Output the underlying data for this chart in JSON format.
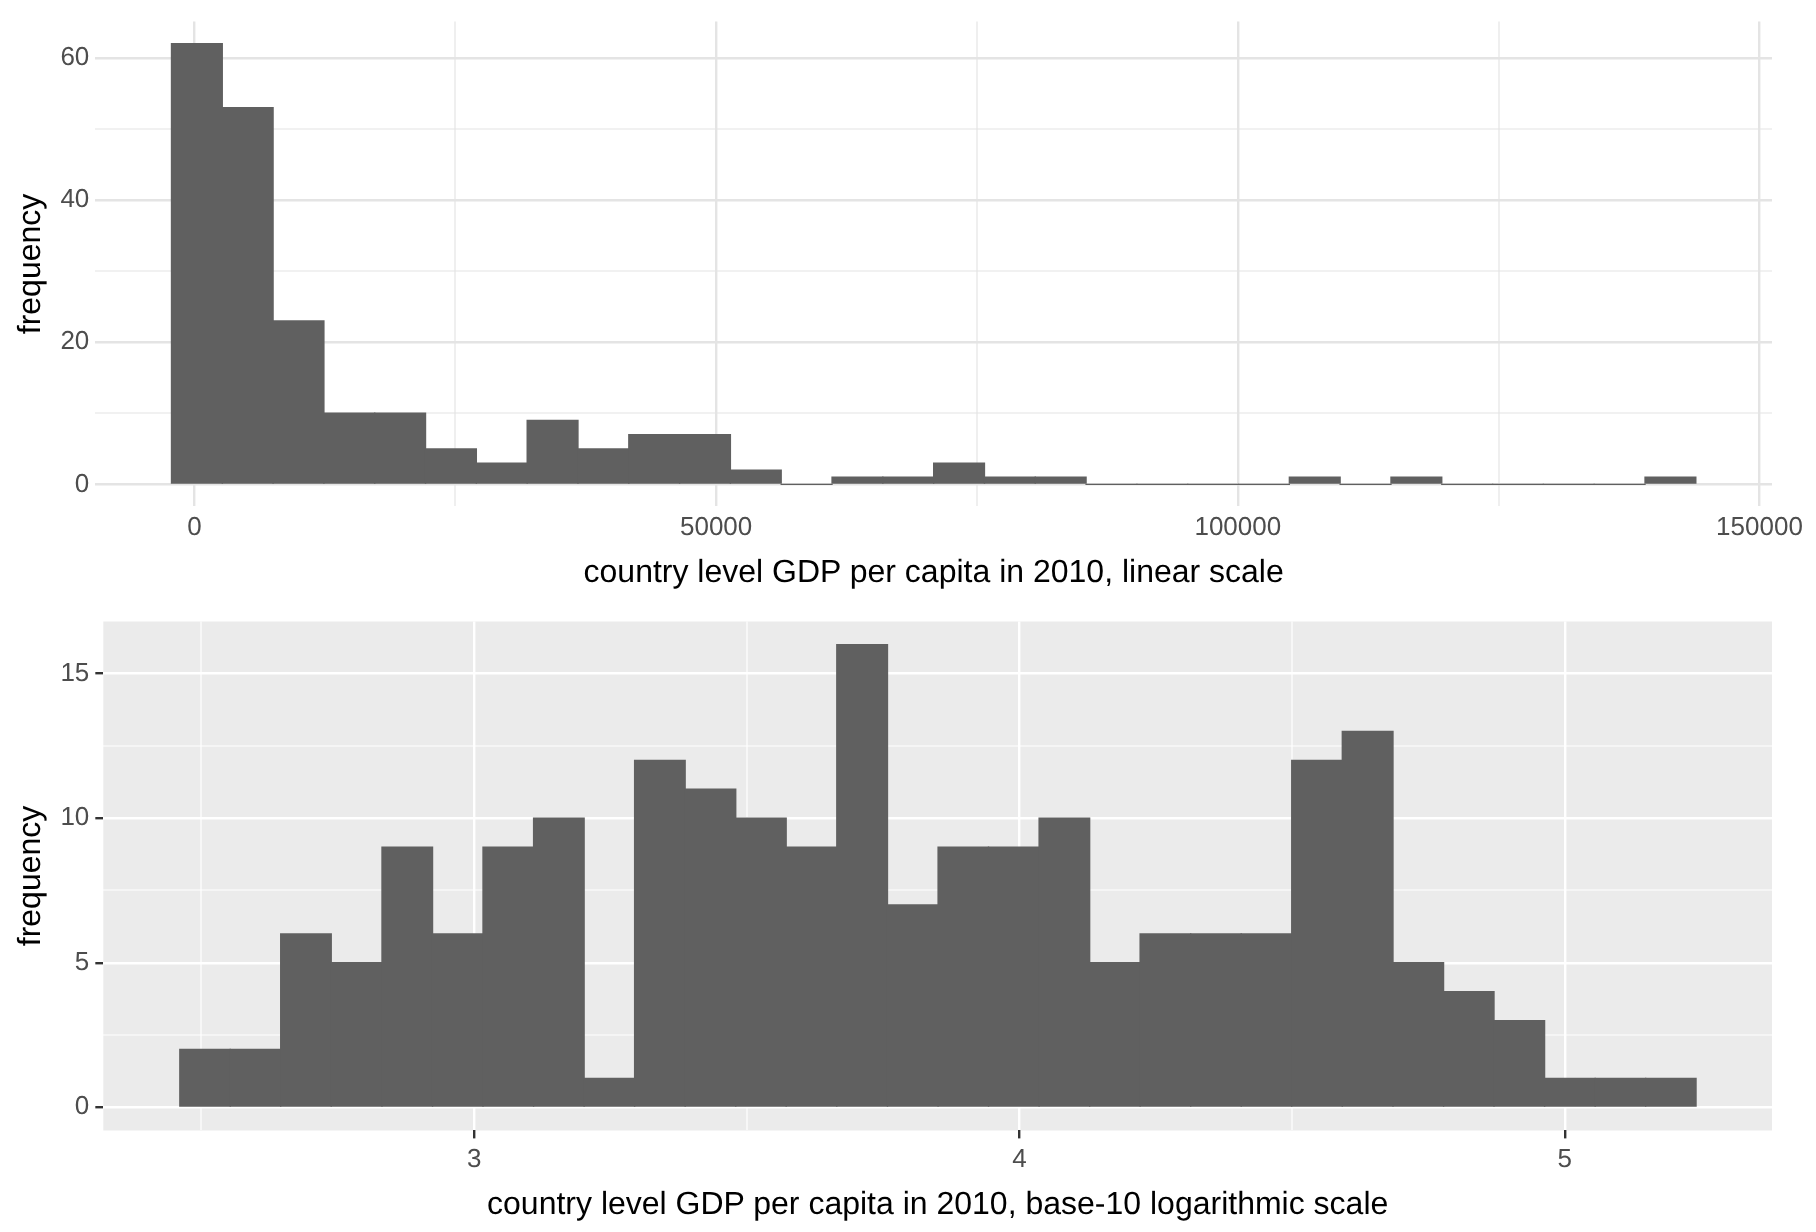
{
  "chart_data": [
    {
      "type": "histogram",
      "xlabel": "country level GDP per capita in 2010, linear scale",
      "ylabel": "frequency",
      "color": "#606060",
      "bins": [
        -2200,
        2670,
        7540,
        12410,
        17280,
        22150,
        27020,
        31890,
        36760,
        41630,
        46500,
        51370,
        56240,
        61110,
        65980,
        70850,
        75720,
        80590,
        85460,
        90330,
        95200,
        100070,
        104940,
        109810,
        114680,
        119550,
        124420,
        129290,
        134160,
        139030,
        143900
      ],
      "values": [
        62,
        53,
        23,
        10,
        10,
        5,
        3,
        9,
        5,
        7,
        7,
        2,
        0,
        1,
        1,
        3,
        1,
        1,
        0,
        0,
        0,
        0,
        1,
        0,
        1,
        0,
        0,
        0,
        0,
        1
      ],
      "xlim": [
        -9500,
        151200
      ],
      "xticks": [
        0,
        {
          "value": 25000,
          "label": null
        },
        50000,
        {
          "value": 75000,
          "label": null
        },
        100000,
        {
          "value": 125000,
          "label": null
        },
        150000
      ],
      "ylim": [
        -3.1,
        65.1
      ],
      "yticks": [
        0,
        {
          "value": 10,
          "label": null
        },
        20,
        {
          "value": 30,
          "label": null
        },
        40,
        {
          "value": 50,
          "label": null
        },
        60
      ],
      "grid": true
    },
    {
      "type": "histogram",
      "xlabel": "country level GDP per capita in 2010, base-10 logarithmic scale",
      "ylabel": "frequency",
      "color": "#606060",
      "bins": [
        2.46,
        2.553,
        2.645,
        2.738,
        2.831,
        2.924,
        3.016,
        3.109,
        3.202,
        3.294,
        3.387,
        3.48,
        3.572,
        3.665,
        3.758,
        3.851,
        3.943,
        4.036,
        4.129,
        4.221,
        4.314,
        4.407,
        4.499,
        4.592,
        4.685,
        4.778,
        4.87,
        4.963,
        5.056,
        5.148,
        5.241
      ],
      "values": [
        2,
        2,
        6,
        5,
        9,
        6,
        9,
        10,
        1,
        12,
        11,
        10,
        9,
        16,
        7,
        9,
        9,
        10,
        5,
        6,
        6,
        6,
        12,
        13,
        5,
        4,
        3,
        1,
        1,
        1
      ],
      "xlim": [
        2.32,
        5.38
      ],
      "xticks": [
        {
          "value": 2.5,
          "label": null
        },
        3,
        {
          "value": 3.5,
          "label": null
        },
        4,
        {
          "value": 4.5,
          "label": null
        },
        5
      ],
      "ylim": [
        -0.8,
        16.8
      ],
      "yticks": [
        0,
        {
          "value": 2.5,
          "label": null
        },
        5,
        {
          "value": 7.5,
          "label": null
        },
        10,
        {
          "value": 12.5,
          "label": null
        },
        15
      ],
      "grid": true
    }
  ]
}
